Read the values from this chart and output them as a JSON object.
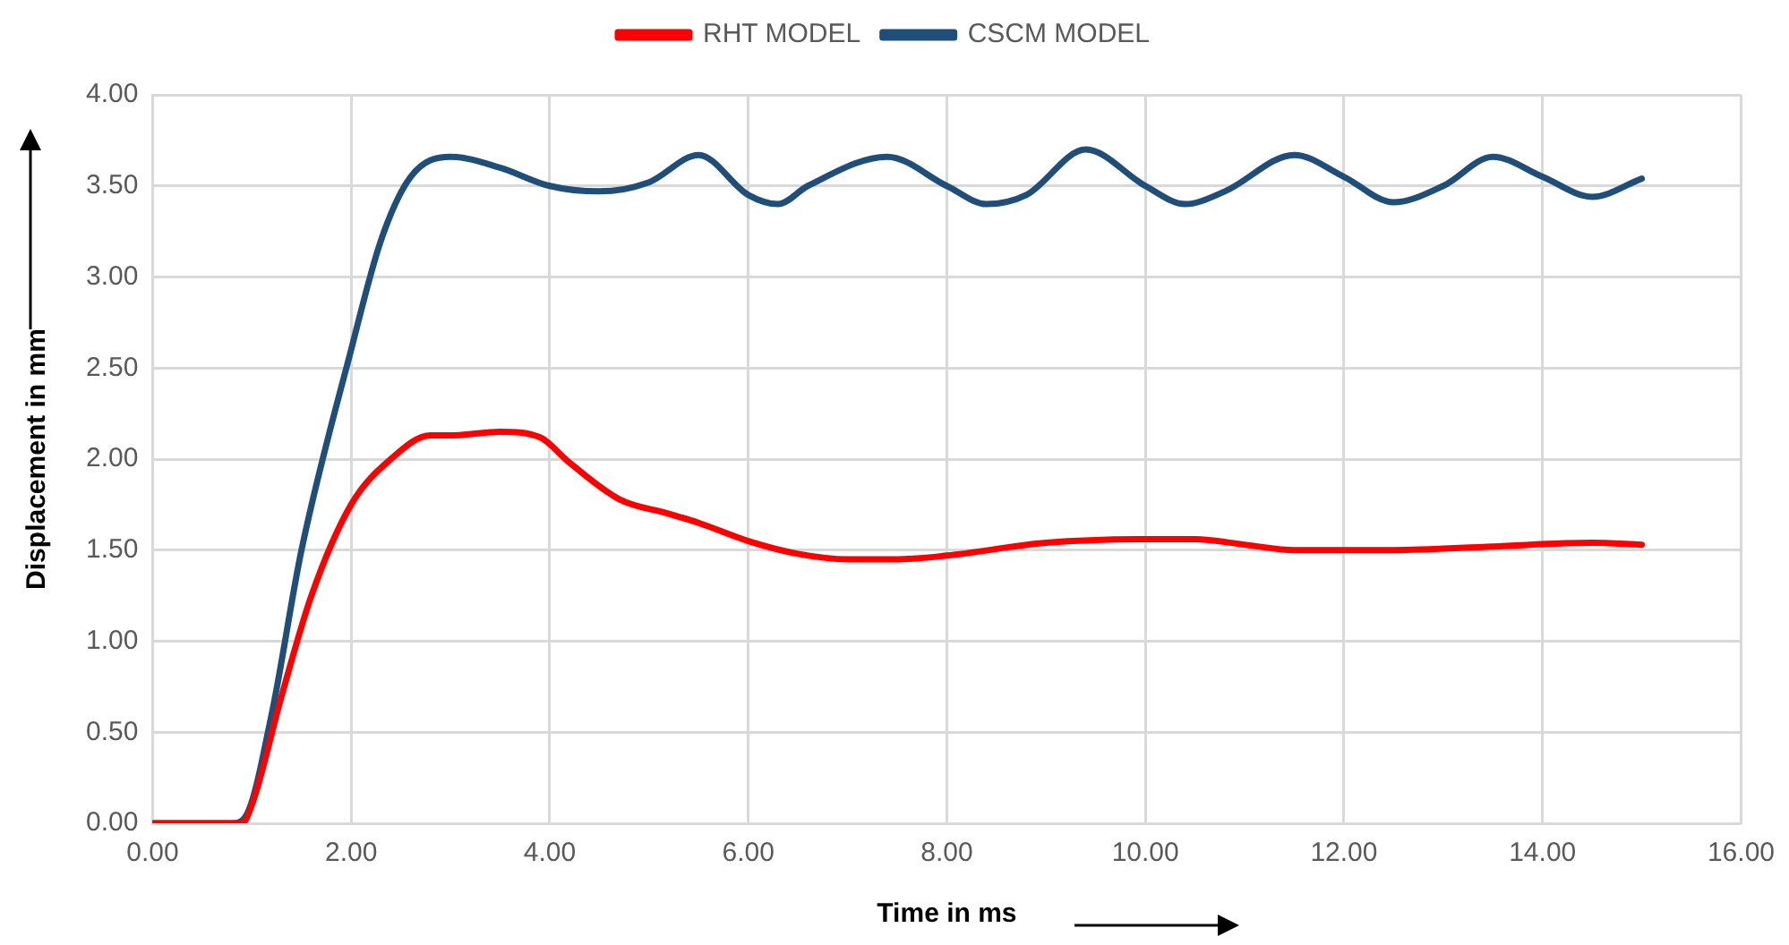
{
  "chart_data": {
    "type": "line",
    "xlabel": "Time in ms",
    "ylabel": "Displacement in mm",
    "xlim": [
      0,
      16
    ],
    "xticks": [
      {
        "value": 0,
        "label": "0.00"
      },
      {
        "value": 2,
        "label": "2.00"
      },
      {
        "value": 4,
        "label": "4.00"
      },
      {
        "value": 6,
        "label": "6.00"
      },
      {
        "value": 8,
        "label": "8.00"
      },
      {
        "value": 10,
        "label": "10.00"
      },
      {
        "value": 12,
        "label": "12.00"
      },
      {
        "value": 14,
        "label": "14.00"
      },
      {
        "value": 16,
        "label": "16.00"
      }
    ],
    "ylim": [
      0,
      4
    ],
    "yticks": [
      {
        "value": 0,
        "label": "0.00"
      },
      {
        "value": 0.5,
        "label": "0.50"
      },
      {
        "value": 1,
        "label": "1.00"
      },
      {
        "value": 1.5,
        "label": "1.50"
      },
      {
        "value": 2,
        "label": "2.00"
      },
      {
        "value": 2.5,
        "label": "2.50"
      },
      {
        "value": 3,
        "label": "3.00"
      },
      {
        "value": 3.5,
        "label": "3.50"
      },
      {
        "value": 4,
        "label": "4.00"
      }
    ],
    "grid": true,
    "legend": "top",
    "marker": "none",
    "line_style": "solid",
    "series": [
      {
        "name": "RHT MODEL",
        "color": "#ff0000",
        "x": [
          0,
          0.9,
          1.0,
          1.3,
          1.6,
          2.0,
          2.4,
          2.8,
          3.0,
          3.5,
          3.9,
          4.2,
          4.7,
          5.2,
          5.5,
          6.0,
          6.5,
          7.0,
          7.5,
          8.0,
          9.0,
          10.0,
          10.5,
          11.0,
          11.5,
          12.5,
          13.5,
          14.5,
          15.0
        ],
        "values": [
          0,
          0,
          0.1,
          0.7,
          1.25,
          1.75,
          2.0,
          2.13,
          2.13,
          2.15,
          2.12,
          1.98,
          1.78,
          1.7,
          1.65,
          1.55,
          1.48,
          1.45,
          1.45,
          1.47,
          1.54,
          1.56,
          1.56,
          1.53,
          1.5,
          1.5,
          1.52,
          1.54,
          1.53
        ]
      },
      {
        "name": "CSCM MODEL",
        "color": "#1f4e79",
        "x": [
          0,
          0.8,
          0.95,
          1.2,
          1.5,
          2.0,
          2.3,
          2.6,
          3.0,
          3.5,
          4.0,
          4.5,
          5.0,
          5.5,
          6.0,
          6.3,
          6.6,
          7.4,
          8.0,
          8.4,
          8.8,
          9.4,
          10.0,
          10.4,
          10.8,
          11.5,
          12.0,
          12.5,
          13.0,
          13.5,
          14.0,
          14.5,
          15.0
        ],
        "values": [
          0,
          0,
          0.05,
          0.6,
          1.5,
          2.6,
          3.2,
          3.55,
          3.66,
          3.6,
          3.5,
          3.47,
          3.52,
          3.67,
          3.45,
          3.4,
          3.5,
          3.66,
          3.5,
          3.4,
          3.45,
          3.7,
          3.5,
          3.4,
          3.47,
          3.67,
          3.55,
          3.41,
          3.5,
          3.66,
          3.55,
          3.44,
          3.54
        ]
      }
    ]
  }
}
